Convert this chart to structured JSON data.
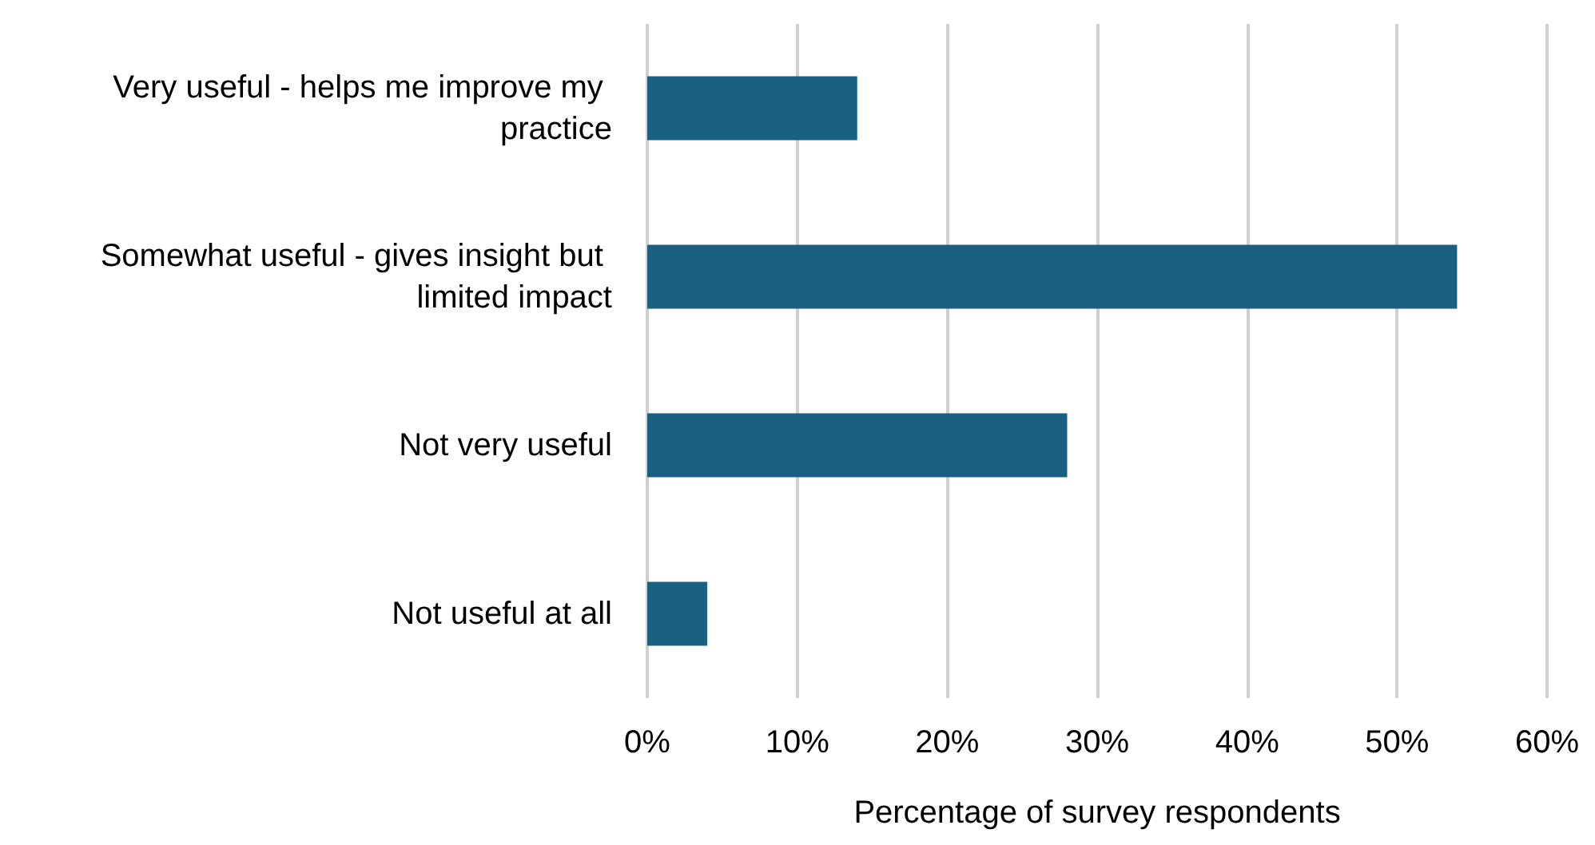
{
  "chart_data": {
    "type": "bar",
    "orientation": "horizontal",
    "xlabel": "Percentage of survey respondents",
    "categories": [
      "Very useful - helps me improve my practice",
      "Somewhat useful - gives insight but limited impact",
      "Not very useful",
      "Not useful at all"
    ],
    "values": [
      14,
      54,
      28,
      4
    ],
    "color": "#1a6080",
    "xlim": [
      0,
      60
    ],
    "xticks": [
      {
        "value": 0,
        "label": "0%"
      },
      {
        "value": 10,
        "label": "10%"
      },
      {
        "value": 20,
        "label": "20%"
      },
      {
        "value": 30,
        "label": "30%"
      },
      {
        "value": 40,
        "label": "40%"
      },
      {
        "value": 50,
        "label": "50%"
      },
      {
        "value": 60,
        "label": "60%"
      }
    ],
    "grid": "x"
  }
}
